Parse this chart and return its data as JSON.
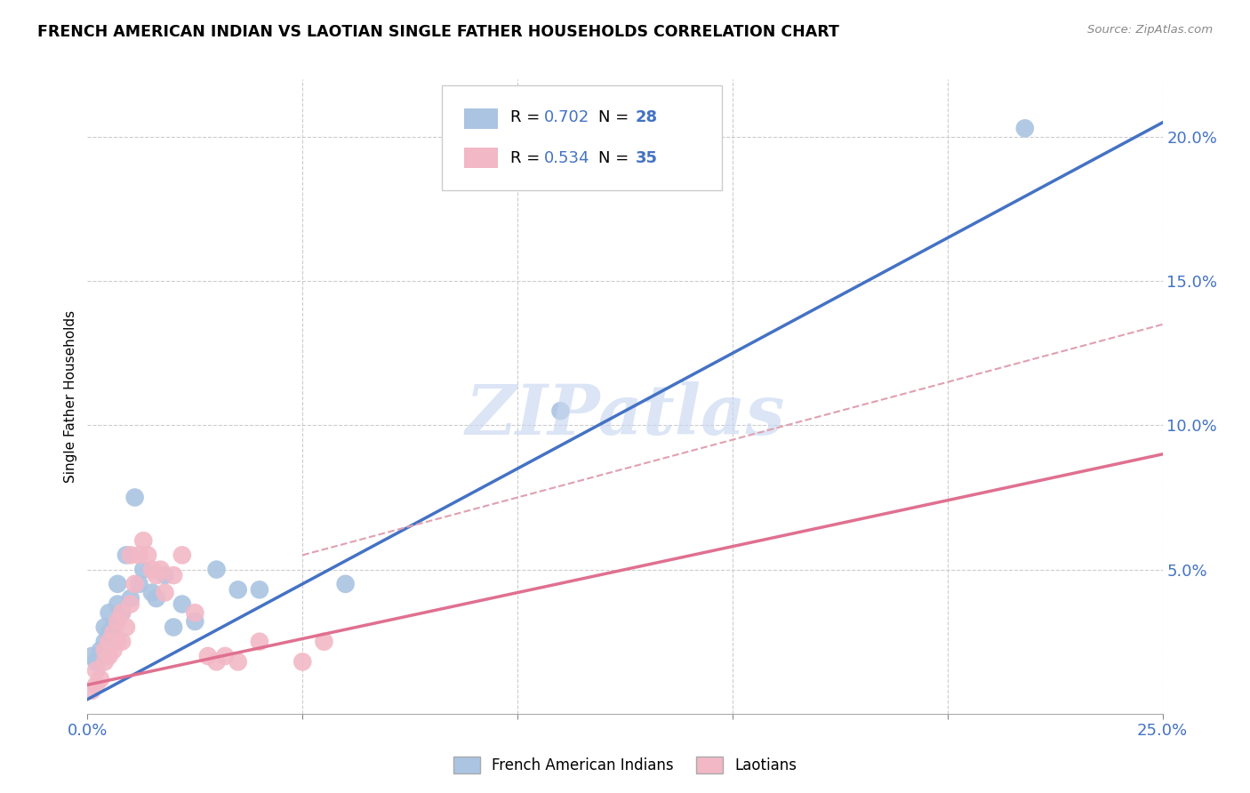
{
  "title": "FRENCH AMERICAN INDIAN VS LAOTIAN SINGLE FATHER HOUSEHOLDS CORRELATION CHART",
  "source": "Source: ZipAtlas.com",
  "ylabel": "Single Father Households",
  "xlim": [
    0.0,
    0.25
  ],
  "ylim": [
    0.0,
    0.22
  ],
  "blue_R": "0.702",
  "blue_N": "28",
  "pink_R": "0.534",
  "pink_N": "35",
  "blue_color": "#aac4e2",
  "pink_color": "#f2b8c6",
  "blue_line_color": "#4472c4",
  "pink_line_color": "#e07090",
  "pink_dash_color": "#e0a0b0",
  "watermark": "ZIPatlas",
  "legend_label_blue": "French American Indians",
  "legend_label_pink": "Laotians",
  "blue_scatter_x": [
    0.001,
    0.002,
    0.003,
    0.004,
    0.004,
    0.005,
    0.005,
    0.006,
    0.007,
    0.007,
    0.008,
    0.009,
    0.01,
    0.011,
    0.012,
    0.013,
    0.015,
    0.016,
    0.018,
    0.02,
    0.022,
    0.025,
    0.03,
    0.035,
    0.04,
    0.06,
    0.11,
    0.218
  ],
  "blue_scatter_y": [
    0.02,
    0.018,
    0.022,
    0.025,
    0.03,
    0.028,
    0.035,
    0.03,
    0.038,
    0.045,
    0.035,
    0.055,
    0.04,
    0.075,
    0.045,
    0.05,
    0.042,
    0.04,
    0.048,
    0.03,
    0.038,
    0.032,
    0.05,
    0.043,
    0.043,
    0.045,
    0.105,
    0.203
  ],
  "pink_scatter_x": [
    0.001,
    0.002,
    0.002,
    0.003,
    0.004,
    0.004,
    0.005,
    0.005,
    0.006,
    0.006,
    0.007,
    0.007,
    0.008,
    0.008,
    0.009,
    0.01,
    0.01,
    0.011,
    0.012,
    0.013,
    0.014,
    0.015,
    0.016,
    0.017,
    0.018,
    0.02,
    0.022,
    0.025,
    0.028,
    0.03,
    0.032,
    0.035,
    0.04,
    0.05,
    0.055
  ],
  "pink_scatter_y": [
    0.008,
    0.01,
    0.015,
    0.012,
    0.018,
    0.022,
    0.02,
    0.025,
    0.022,
    0.028,
    0.025,
    0.032,
    0.025,
    0.035,
    0.03,
    0.038,
    0.055,
    0.045,
    0.055,
    0.06,
    0.055,
    0.05,
    0.048,
    0.05,
    0.042,
    0.048,
    0.055,
    0.035,
    0.02,
    0.018,
    0.02,
    0.018,
    0.025,
    0.018,
    0.025
  ],
  "blue_line_x": [
    0.0,
    0.25
  ],
  "blue_line_y": [
    0.005,
    0.205
  ],
  "pink_line_x": [
    0.0,
    0.25
  ],
  "pink_line_y": [
    0.01,
    0.09
  ],
  "pink_dash_line_x": [
    0.05,
    0.25
  ],
  "pink_dash_line_y": [
    0.055,
    0.135
  ]
}
